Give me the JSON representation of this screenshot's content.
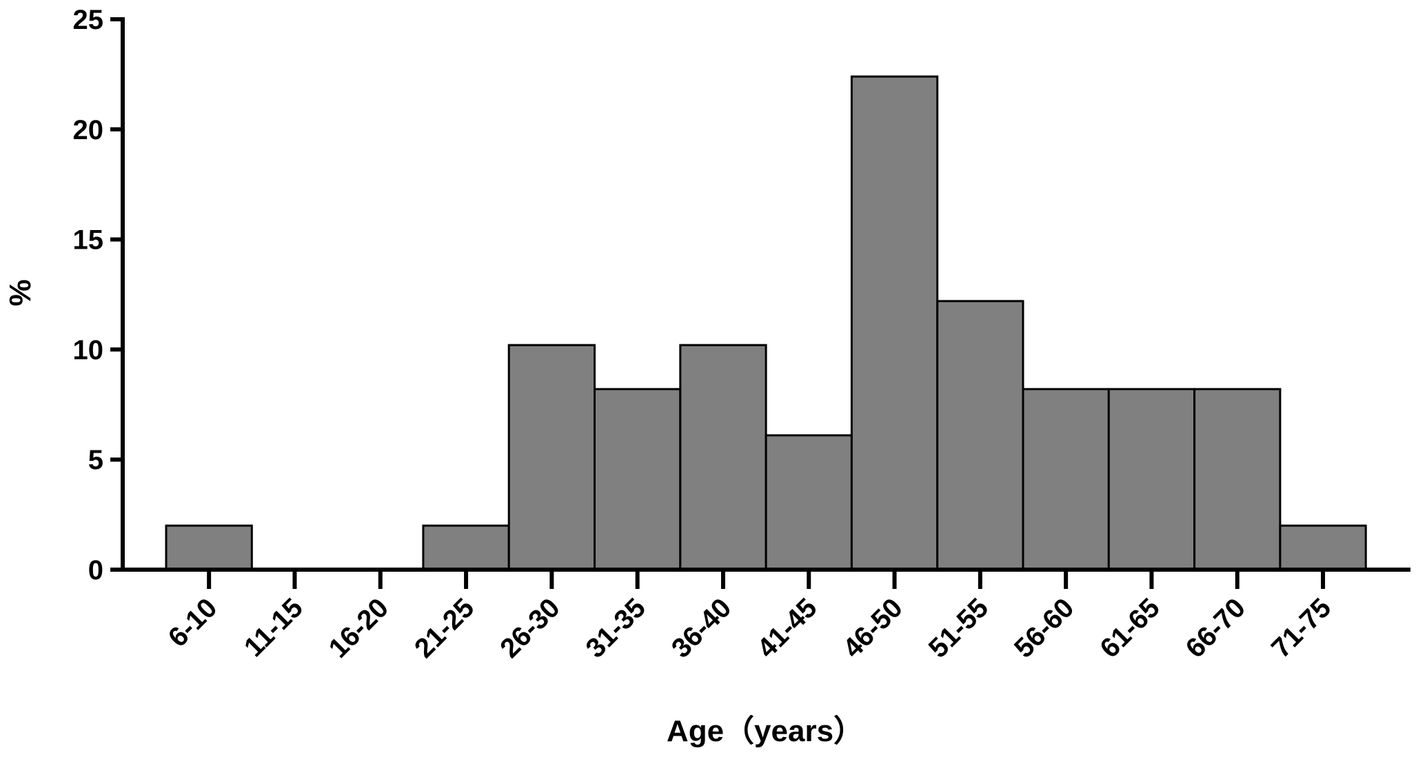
{
  "chart_data": {
    "type": "bar",
    "title": "",
    "xlabel": "Age（years）",
    "ylabel": "%",
    "categories": [
      "6-10",
      "11-15",
      "16-20",
      "21-25",
      "26-30",
      "31-35",
      "36-40",
      "41-45",
      "46-50",
      "51-55",
      "56-60",
      "61-65",
      "66-70",
      "71-75"
    ],
    "values": [
      2,
      0,
      0,
      2,
      10.2,
      8.2,
      10.2,
      6.1,
      22.4,
      12.2,
      8.2,
      8.2,
      8.2,
      2
    ],
    "ylim": [
      0,
      25
    ],
    "yticks": [
      0,
      5,
      10,
      15,
      20,
      25
    ],
    "grid": false,
    "legend": "none",
    "colors": {
      "bar_fill": "#808080",
      "bar_stroke": "#000000",
      "axis": "#000000"
    }
  }
}
